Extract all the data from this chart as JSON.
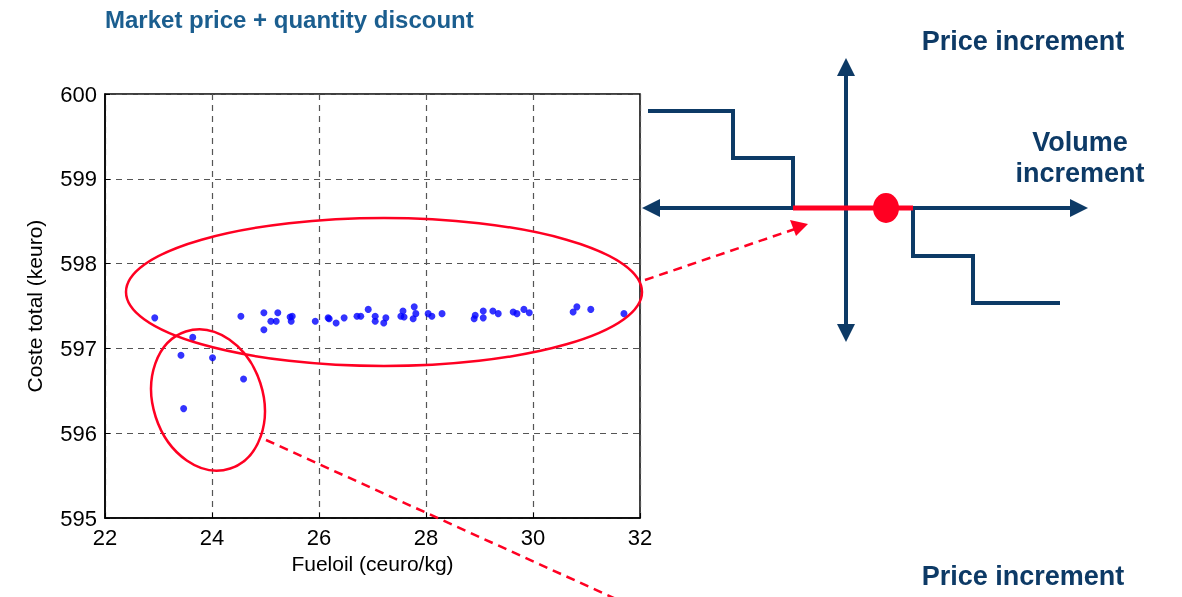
{
  "chart_data": {
    "type": "scatter",
    "title": "Market price + quantity discount",
    "xlabel": "Fueloil (ceuro/kg)",
    "ylabel": "Coste total (keuro)",
    "annotations": [
      "Price increment",
      "Volume increment",
      "Price increment"
    ],
    "x": [
      22.93,
      23.64,
      23.42,
      24.01,
      24.59,
      23.47,
      24.54,
      24.97,
      24.97,
      25.1,
      25.2,
      25.23,
      25.46,
      25.5,
      25.48,
      25.93,
      26.17,
      26.19,
      26.32,
      26.47,
      26.71,
      26.78,
      26.92,
      27.05,
      27.05,
      27.21,
      27.25,
      27.57,
      27.53,
      27.59,
      27.78,
      27.81,
      27.76,
      28.04,
      28.11,
      28.3,
      28.92,
      28.9,
      29.07,
      29.07,
      29.25,
      29.35,
      29.63,
      29.7,
      29.83,
      29.93,
      30.75,
      30.82,
      31.08,
      31.7
    ],
    "values": [
      597.36,
      597.13,
      596.92,
      596.89,
      596.64,
      596.29,
      597.38,
      597.42,
      597.22,
      597.32,
      597.32,
      597.42,
      597.37,
      597.38,
      597.32,
      597.32,
      597.36,
      597.35,
      597.3,
      597.36,
      597.38,
      597.38,
      597.46,
      597.38,
      597.32,
      597.3,
      597.36,
      597.44,
      597.38,
      597.37,
      597.49,
      597.41,
      597.35,
      597.41,
      597.38,
      597.41,
      597.39,
      597.35,
      597.44,
      597.36,
      597.44,
      597.41,
      597.43,
      597.41,
      597.46,
      597.42,
      597.43,
      597.49,
      597.46,
      597.41
    ],
    "color": "#0000ff",
    "marker": "circle",
    "xlim": [
      22,
      32
    ],
    "xticks": [
      22,
      24,
      26,
      28,
      30,
      32
    ],
    "ylim": [
      595,
      600
    ],
    "yticks": [
      595,
      596,
      597,
      598,
      599,
      600
    ],
    "grid": true
  }
}
